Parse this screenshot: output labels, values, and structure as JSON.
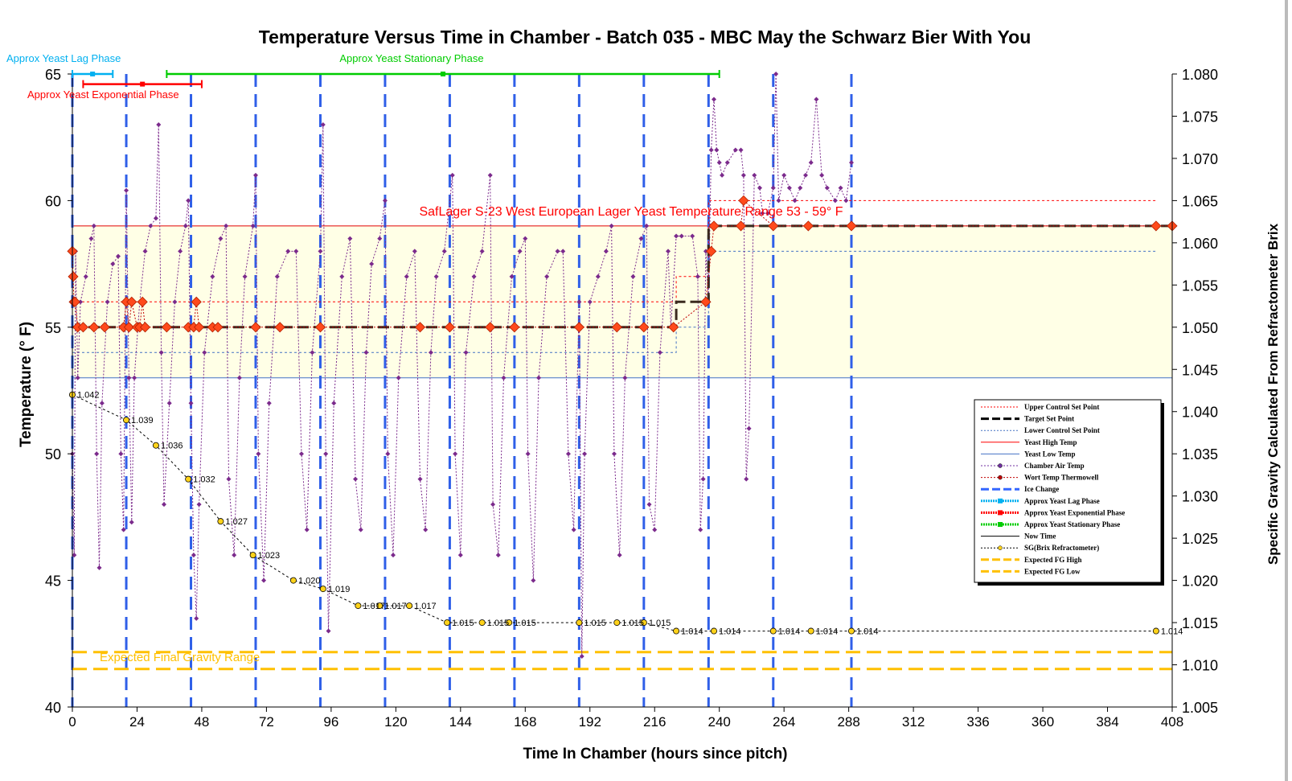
{
  "chart_data": {
    "type": "line",
    "title": "Temperature Versus Time in Chamber - Batch 035 - MBC May the Schwarz Bier With You",
    "xlabel": "Time In Chamber (hours since pitch)",
    "ylabel": "Temperature (° F)",
    "y2label": "Specific Gravity Calculated From Refractometer Brix",
    "xlim": [
      0,
      408
    ],
    "ylim": [
      40,
      65
    ],
    "y2lim": [
      1.005,
      1.08
    ],
    "x_ticks": [
      "0",
      "24",
      "48",
      "72",
      "96",
      "120",
      "144",
      "168",
      "192",
      "216",
      "240",
      "264",
      "288",
      "312",
      "336",
      "360",
      "384",
      "408"
    ],
    "y_ticks": [
      "40",
      "45",
      "50",
      "55",
      "60",
      "65"
    ],
    "y2_ticks": [
      "1.005",
      "1.010",
      "1.015",
      "1.020",
      "1.025",
      "1.030",
      "1.035",
      "1.040",
      "1.045",
      "1.050",
      "1.055",
      "1.060",
      "1.065",
      "1.070",
      "1.075",
      "1.080"
    ],
    "yeast_range_label": "SafLager S-23 West European Lager Yeast Temperature Range 53 - 59° F",
    "yeast_high": 59,
    "yeast_low": 53,
    "fg_label": "Expected Final Gravity Range",
    "fg_high": 1.0115,
    "fg_low": 1.0095,
    "phases": [
      {
        "name": "Approx Yeast Lag Phase",
        "start": 0,
        "end": 15,
        "level": 65,
        "color": "#00b0f0"
      },
      {
        "name": "Approx Yeast Exponential Phase",
        "start": 4,
        "end": 48,
        "level": 64.6,
        "color": "#ff0000"
      },
      {
        "name": "Approx Yeast Stationary Phase",
        "start": 35,
        "end": 240,
        "level": 65,
        "color": "#00cc00"
      }
    ],
    "ice_changes": [
      0,
      20,
      44,
      68,
      92,
      116,
      140,
      164,
      188,
      212,
      236,
      260,
      289
    ],
    "target_set_point": [
      [
        0,
        55
      ],
      [
        224,
        55
      ],
      [
        224,
        56
      ],
      [
        236,
        56
      ],
      [
        236,
        59
      ],
      [
        408,
        59
      ]
    ],
    "upper_control": [
      [
        0,
        56
      ],
      [
        224,
        56
      ],
      [
        224,
        57
      ],
      [
        236,
        57
      ],
      [
        236,
        60
      ],
      [
        402,
        60
      ]
    ],
    "lower_control": [
      [
        0,
        54
      ],
      [
        224,
        54
      ],
      [
        224,
        55
      ],
      [
        236,
        55
      ],
      [
        236,
        58
      ],
      [
        402,
        58
      ]
    ],
    "wort_temp": [
      [
        0,
        58
      ],
      [
        0.3,
        57
      ],
      [
        0.6,
        56
      ],
      [
        1,
        56
      ],
      [
        2,
        55
      ],
      [
        4,
        55
      ],
      [
        8,
        55
      ],
      [
        12,
        55
      ],
      [
        19,
        55
      ],
      [
        20,
        56
      ],
      [
        21,
        55
      ],
      [
        22,
        56
      ],
      [
        24,
        55
      ],
      [
        25,
        55
      ],
      [
        26,
        56
      ],
      [
        27,
        55
      ],
      [
        35,
        55
      ],
      [
        43,
        55
      ],
      [
        45,
        55
      ],
      [
        46,
        56
      ],
      [
        47,
        55
      ],
      [
        52,
        55
      ],
      [
        54,
        55
      ],
      [
        68,
        55
      ],
      [
        77,
        55
      ],
      [
        92,
        55
      ],
      [
        129,
        55
      ],
      [
        140,
        55
      ],
      [
        155,
        55
      ],
      [
        164,
        55
      ],
      [
        188,
        55
      ],
      [
        202,
        55
      ],
      [
        212,
        55
      ],
      [
        223,
        55
      ],
      [
        235,
        56
      ],
      [
        237,
        58
      ],
      [
        238,
        59
      ],
      [
        248,
        59
      ],
      [
        249,
        60
      ],
      [
        260,
        59
      ],
      [
        273,
        59
      ],
      [
        289,
        59
      ],
      [
        402,
        59
      ],
      [
        408,
        59
      ]
    ],
    "chamber_air": [
      [
        0,
        50
      ],
      [
        0.7,
        46
      ],
      [
        1.2,
        58
      ],
      [
        2,
        53
      ],
      [
        3,
        56
      ],
      [
        5,
        57
      ],
      [
        7,
        58.5
      ],
      [
        8,
        59
      ],
      [
        9,
        50
      ],
      [
        10,
        45.5
      ],
      [
        11,
        52
      ],
      [
        13,
        56
      ],
      [
        15,
        57.5
      ],
      [
        17,
        57.8
      ],
      [
        18,
        50
      ],
      [
        19,
        47
      ],
      [
        20,
        60.4
      ],
      [
        21,
        53
      ],
      [
        22,
        47.3
      ],
      [
        23,
        53
      ],
      [
        25,
        56
      ],
      [
        27,
        58
      ],
      [
        29,
        59
      ],
      [
        31,
        59.3
      ],
      [
        32,
        63
      ],
      [
        33,
        54
      ],
      [
        34,
        48
      ],
      [
        36,
        52
      ],
      [
        38,
        56
      ],
      [
        40,
        58
      ],
      [
        42,
        59
      ],
      [
        43,
        60
      ],
      [
        44,
        52
      ],
      [
        45,
        46
      ],
      [
        46,
        43.5
      ],
      [
        47,
        48
      ],
      [
        49,
        54
      ],
      [
        52,
        57
      ],
      [
        55,
        58.5
      ],
      [
        57,
        59
      ],
      [
        58,
        49
      ],
      [
        60,
        46
      ],
      [
        62,
        53
      ],
      [
        64,
        57
      ],
      [
        67,
        59
      ],
      [
        68,
        61
      ],
      [
        69,
        50
      ],
      [
        71,
        45
      ],
      [
        73,
        52
      ],
      [
        76,
        57
      ],
      [
        80,
        58
      ],
      [
        83,
        58
      ],
      [
        85,
        50
      ],
      [
        87,
        47
      ],
      [
        89,
        54
      ],
      [
        92,
        58
      ],
      [
        93,
        63
      ],
      [
        94,
        50
      ],
      [
        95,
        43
      ],
      [
        97,
        52
      ],
      [
        100,
        57
      ],
      [
        103,
        58.5
      ],
      [
        105,
        49
      ],
      [
        107,
        47
      ],
      [
        109,
        54
      ],
      [
        111,
        57.5
      ],
      [
        114,
        58.5
      ],
      [
        116,
        60
      ],
      [
        117,
        50
      ],
      [
        119,
        46
      ],
      [
        121,
        53
      ],
      [
        124,
        57
      ],
      [
        127,
        58
      ],
      [
        129,
        49
      ],
      [
        131,
        47
      ],
      [
        133,
        54
      ],
      [
        135,
        57
      ],
      [
        138,
        58
      ],
      [
        141,
        61
      ],
      [
        142,
        50
      ],
      [
        144,
        46
      ],
      [
        146,
        54
      ],
      [
        149,
        57
      ],
      [
        152,
        58
      ],
      [
        155,
        61
      ],
      [
        156,
        48
      ],
      [
        158,
        46
      ],
      [
        160,
        53
      ],
      [
        163,
        57
      ],
      [
        166,
        58
      ],
      [
        168,
        58.5
      ],
      [
        169,
        50
      ],
      [
        171,
        45
      ],
      [
        173,
        53
      ],
      [
        176,
        57
      ],
      [
        180,
        58
      ],
      [
        182,
        58
      ],
      [
        184,
        50
      ],
      [
        186,
        47
      ],
      [
        188,
        56
      ],
      [
        189,
        42
      ],
      [
        190,
        50
      ],
      [
        192,
        56
      ],
      [
        195,
        57
      ],
      [
        198,
        58
      ],
      [
        200,
        59
      ],
      [
        201,
        50
      ],
      [
        203,
        46
      ],
      [
        205,
        53
      ],
      [
        208,
        57
      ],
      [
        211,
        58.5
      ],
      [
        213,
        59
      ],
      [
        214,
        48
      ],
      [
        216,
        47
      ],
      [
        218,
        54
      ],
      [
        221,
        58
      ],
      [
        222,
        55
      ],
      [
        224,
        58.6
      ],
      [
        226,
        58.6
      ],
      [
        230,
        58.6
      ],
      [
        232,
        57
      ],
      [
        233,
        47
      ],
      [
        234,
        49
      ],
      [
        235,
        58
      ],
      [
        236,
        56
      ],
      [
        237,
        62
      ],
      [
        238,
        64
      ],
      [
        239,
        62
      ],
      [
        240,
        61.5
      ],
      [
        241,
        61
      ],
      [
        243,
        61.5
      ],
      [
        246,
        62
      ],
      [
        248,
        62
      ],
      [
        249,
        61
      ],
      [
        250,
        49
      ],
      [
        251,
        51
      ],
      [
        253,
        61
      ],
      [
        255,
        60.5
      ],
      [
        256,
        59.5
      ],
      [
        258,
        59.5
      ],
      [
        260,
        60.5
      ],
      [
        261,
        65
      ],
      [
        262,
        60
      ],
      [
        264,
        61
      ],
      [
        266,
        60.5
      ],
      [
        268,
        60
      ],
      [
        270,
        60.5
      ],
      [
        272,
        61
      ],
      [
        274,
        61.5
      ],
      [
        276,
        64
      ],
      [
        278,
        61
      ],
      [
        280,
        60.5
      ],
      [
        283,
        60
      ],
      [
        285,
        60.5
      ],
      [
        287,
        60
      ],
      [
        289,
        61.5
      ]
    ],
    "sg": [
      [
        0,
        1.042
      ],
      [
        20,
        1.039
      ],
      [
        31,
        1.036
      ],
      [
        43,
        1.032
      ],
      [
        55,
        1.027
      ],
      [
        67,
        1.023
      ],
      [
        82,
        1.02
      ],
      [
        93,
        1.019
      ],
      [
        106,
        1.017
      ],
      [
        114,
        1.017
      ],
      [
        125,
        1.017
      ],
      [
        139,
        1.015
      ],
      [
        152,
        1.015
      ],
      [
        162,
        1.015
      ],
      [
        188,
        1.015
      ],
      [
        202,
        1.015
      ],
      [
        212,
        1.015
      ],
      [
        224,
        1.014
      ],
      [
        238,
        1.014
      ],
      [
        260,
        1.014
      ],
      [
        274,
        1.014
      ],
      [
        289,
        1.014
      ],
      [
        402,
        1.014
      ]
    ],
    "sg_labels": [
      {
        "x": 0,
        "y": 1.042,
        "text": "1.042"
      },
      {
        "x": 20,
        "y": 1.039,
        "text": "1.039"
      },
      {
        "x": 31,
        "y": 1.036,
        "text": "1.036"
      },
      {
        "x": 43,
        "y": 1.032,
        "text": "1.032"
      },
      {
        "x": 55,
        "y": 1.027,
        "text": "1.027"
      },
      {
        "x": 67,
        "y": 1.023,
        "text": "1.023"
      },
      {
        "x": 82,
        "y": 1.02,
        "text": "1.020"
      },
      {
        "x": 93,
        "y": 1.019,
        "text": "1.019"
      },
      {
        "x": 106,
        "y": 1.017,
        "text": "1.017"
      },
      {
        "x": 114,
        "y": 1.017,
        "text": "1.017"
      },
      {
        "x": 125,
        "y": 1.017,
        "text": "1.017"
      },
      {
        "x": 139,
        "y": 1.015,
        "text": "1.015"
      },
      {
        "x": 152,
        "y": 1.015,
        "text": "1.015"
      },
      {
        "x": 162,
        "y": 1.015,
        "text": "1.015"
      },
      {
        "x": 188,
        "y": 1.015,
        "text": "1.015"
      },
      {
        "x": 202,
        "y": 1.015,
        "text": "1.015"
      },
      {
        "x": 212,
        "y": 1.015,
        "text": "1.015"
      },
      {
        "x": 224,
        "y": 1.014,
        "text": "1.014"
      },
      {
        "x": 238,
        "y": 1.014,
        "text": "1.014"
      },
      {
        "x": 260,
        "y": 1.014,
        "text": "1.014"
      },
      {
        "x": 274,
        "y": 1.014,
        "text": "1.014"
      },
      {
        "x": 289,
        "y": 1.014,
        "text": "1.014"
      },
      {
        "x": 402,
        "y": 1.014,
        "text": "1.014"
      }
    ],
    "legend": [
      {
        "label": "Upper Control Set Point",
        "color": "#ff0000",
        "style": "dot"
      },
      {
        "label": "Target Set Point",
        "color": "#000000",
        "style": "dash"
      },
      {
        "label": "Lower Control Set Point",
        "color": "#4472c4",
        "style": "dot"
      },
      {
        "label": "Yeast High Temp",
        "color": "#ff0000",
        "style": "solid"
      },
      {
        "label": "Yeast Low Temp",
        "color": "#4472c4",
        "style": "solid"
      },
      {
        "label": "Chamber Air Temp",
        "color": "#7030a0",
        "style": "dotmarker"
      },
      {
        "label": "Wort Temp Thermowell",
        "color": "#c00000",
        "style": "dotmarker"
      },
      {
        "label": "Ice Change",
        "color": "#3366ff",
        "style": "dash"
      },
      {
        "label": "Approx Yeast Lag Phase",
        "color": "#00b0f0",
        "style": "band"
      },
      {
        "label": "Approx Yeast Exponential Phase",
        "color": "#ff0000",
        "style": "band"
      },
      {
        "label": "Approx Yeast Stationary Phase",
        "color": "#00cc00",
        "style": "band"
      },
      {
        "label": "Now Time",
        "color": "#000000",
        "style": "solid"
      },
      {
        "label": "SG(Brix Refractometer)",
        "color": "#000000",
        "style": "dotmarker"
      },
      {
        "label": "Expected FG High",
        "color": "#ffc000",
        "style": "dash"
      },
      {
        "label": "Expected FG Low",
        "color": "#ffc000",
        "style": "dash"
      }
    ],
    "colors": {
      "yeast_band": "#ffffe6",
      "ice_change": "#2f5fe8",
      "chamber_air": "#7b2a8c",
      "wort_marker": "#ff4a1c",
      "sg_marker": "#ffd21a",
      "fg": "#ffc000"
    }
  }
}
